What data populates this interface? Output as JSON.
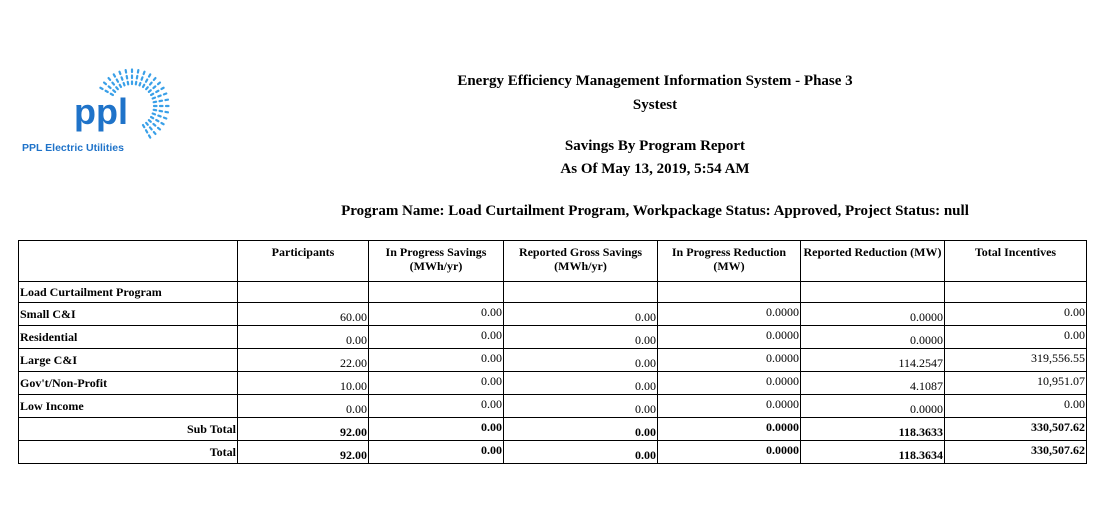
{
  "logo": {
    "brand": "ppl",
    "caption": "PPL Electric Utilities"
  },
  "header": {
    "system": "Energy Efficiency Management Information System - Phase 3",
    "environment": "Systest",
    "report_title": "Savings By Program Report",
    "as_of": "As Of May 13, 2019, 5:54 AM",
    "filter": "Program Name: Load Curtailment Program, Workpackage Status: Approved, Project Status: null"
  },
  "table": {
    "columns": [
      "",
      "Participants",
      "In Progress Savings (MWh/yr)",
      "Reported Gross Savings (MWh/yr)",
      "In Progress Reduction (MW)",
      "Reported Reduction (MW)",
      "Total Incentives"
    ],
    "group_label": "Load Curtailment Program",
    "rows": [
      {
        "label": "Small C&I",
        "values": [
          "60.00",
          "0.00",
          "0.00",
          "0.0000",
          "0.0000",
          "0.00"
        ]
      },
      {
        "label": "Residential",
        "values": [
          "0.00",
          "0.00",
          "0.00",
          "0.0000",
          "0.0000",
          "0.00"
        ]
      },
      {
        "label": "Large C&I",
        "values": [
          "22.00",
          "0.00",
          "0.00",
          "0.0000",
          "114.2547",
          "319,556.55"
        ]
      },
      {
        "label": "Gov't/Non-Profit",
        "values": [
          "10.00",
          "0.00",
          "0.00",
          "0.0000",
          "4.1087",
          "10,951.07"
        ]
      },
      {
        "label": "Low Income",
        "values": [
          "0.00",
          "0.00",
          "0.00",
          "0.0000",
          "0.0000",
          "0.00"
        ]
      }
    ],
    "subtotal": {
      "label": "Sub Total",
      "values": [
        "92.00",
        "0.00",
        "0.00",
        "0.0000",
        "118.3633",
        "330,507.62"
      ]
    },
    "total": {
      "label": "Total",
      "values": [
        "92.00",
        "0.00",
        "0.00",
        "0.0000",
        "118.3634",
        "330,507.62"
      ]
    }
  }
}
